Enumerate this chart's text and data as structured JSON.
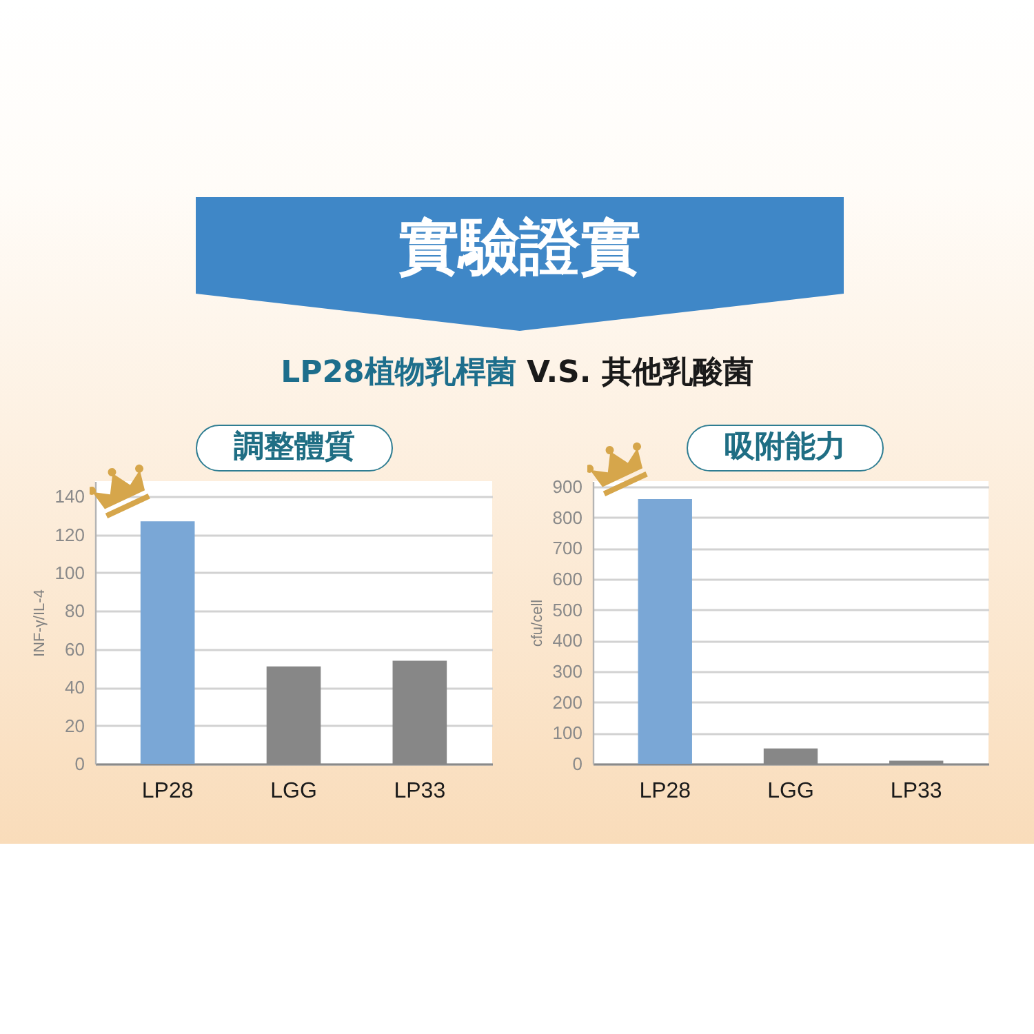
{
  "chart_data": [
    {
      "type": "other",
      "title": "實驗證實",
      "subtitle": "LP28植物乳桿菌 V.S. 其他乳酸菌"
    },
    {
      "type": "bar",
      "title": "調整體質",
      "ylabel": "INF-γ/IL-4",
      "categories": [
        "LP28",
        "LGG",
        "LP33"
      ],
      "values": [
        127,
        51,
        54
      ],
      "colors": [
        "#7aa7d6",
        "#878787",
        "#878787"
      ],
      "ylim": [
        0,
        148
      ],
      "yticks": [
        0,
        20,
        40,
        60,
        80,
        100,
        120,
        140
      ],
      "grid": "y"
    },
    {
      "type": "bar",
      "title": "吸附能力",
      "ylabel": "cfu/cell",
      "categories": [
        "LP28",
        "LGG",
        "LP33"
      ],
      "values": [
        860,
        50,
        10
      ],
      "colors": [
        "#7aa7d6",
        "#878787",
        "#878787"
      ],
      "ylim": [
        0,
        918
      ],
      "yticks": [
        0,
        100,
        200,
        300,
        400,
        500,
        600,
        700,
        800,
        900
      ],
      "grid": "y"
    }
  ]
}
